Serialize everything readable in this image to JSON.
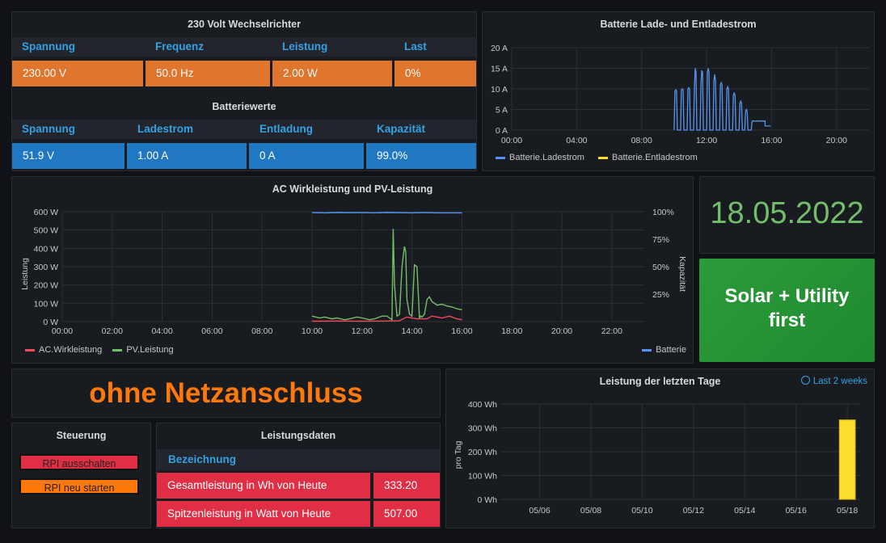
{
  "inverter": {
    "title": "230 Volt Wechselrichter",
    "headers": [
      "Spannung",
      "Frequenz",
      "Leistung",
      "Last"
    ],
    "values": [
      "230.00 V",
      "50.0 Hz",
      "2.00 W",
      "0%"
    ],
    "colors": {
      "cell": "#e0752d"
    }
  },
  "battery_values": {
    "title": "Batteriewerte",
    "headers": [
      "Spannung",
      "Ladestrom",
      "Entladung",
      "Kapazität"
    ],
    "values": [
      "51.9 V",
      "1.00 A",
      "0 A",
      "99.0%"
    ],
    "colors": {
      "cell": "#1f78c1"
    }
  },
  "battery_current_chart": {
    "title": "Batterie Lade- und Entladestrom",
    "legend": [
      "Batterie.Ladestrom",
      "Batterie.Entladestrom"
    ],
    "colors": [
      "#5794f2",
      "#fade2a"
    ]
  },
  "ac_chart": {
    "title": "AC Wirkleistung und PV-Leistung",
    "ylabel_left": "Leistung",
    "ylabel_right": "Kapazität",
    "legend_left": [
      "AC.Wirkleistung",
      "PV.Leistung"
    ],
    "legend_right": "Batterie",
    "colors": [
      "#f2495c",
      "#73bf69",
      "#5794f2"
    ]
  },
  "date_panel": {
    "value": "18.05.2022",
    "color": "#73bf69"
  },
  "mode_panel": {
    "value": "Solar + Utility first",
    "color": "#229432"
  },
  "grid_status": {
    "value": "ohne Netzanschluss",
    "color": "#ff780a"
  },
  "control": {
    "title": "Steuerung",
    "shutdown_label": "RPI ausschalten",
    "restart_label": "RPI neu starten"
  },
  "power_data": {
    "title": "Leistungsdaten",
    "column_header": "Bezeichnung",
    "rows": [
      {
        "label": "Gesamtleistung in Wh von Heute",
        "value": "333.20"
      },
      {
        "label": "Spitzenleistung in Watt von Heute",
        "value": "507.00"
      }
    ]
  },
  "daily_chart": {
    "title": "Leistung der letzten Tage",
    "time_range": "Last 2 weeks",
    "ylabel": "pro Tag",
    "color": "#fade2a"
  },
  "chart_data": [
    {
      "type": "line",
      "title": "Batterie Lade- und Entladestrom",
      "x_ticks": [
        "00:00",
        "04:00",
        "08:00",
        "12:00",
        "16:00",
        "20:00"
      ],
      "y_ticks": [
        "0 A",
        "5 A",
        "10 A",
        "15 A",
        "20 A"
      ],
      "ylim": [
        0,
        20
      ],
      "xlim_hours": [
        0,
        22
      ],
      "series": [
        {
          "name": "Batterie.Ladestrom",
          "color": "#5794f2",
          "x_hours": [
            10.0,
            10.05,
            10.1,
            10.15,
            10.2,
            10.4,
            10.45,
            10.5,
            10.55,
            10.6,
            10.8,
            10.85,
            10.9,
            10.95,
            11.0,
            11.2,
            11.25,
            11.3,
            11.35,
            11.4,
            11.6,
            11.65,
            11.7,
            11.75,
            11.8,
            12.0,
            12.05,
            12.1,
            12.15,
            12.2,
            12.4,
            12.45,
            12.5,
            12.55,
            12.6,
            12.8,
            12.85,
            12.9,
            12.95,
            13.0,
            13.2,
            13.25,
            13.3,
            13.35,
            13.4,
            13.6,
            13.65,
            13.7,
            13.75,
            13.8,
            14.0,
            14.05,
            14.1,
            14.15,
            14.2,
            14.35,
            14.4,
            14.45,
            14.5,
            14.55,
            14.75,
            14.8,
            14.85,
            14.9,
            14.95,
            15.0,
            15.05,
            15.1,
            15.5,
            15.6,
            15.6,
            15.95
          ],
          "values": [
            0,
            9.5,
            9.8,
            9.5,
            0,
            0,
            9.8,
            10,
            9.8,
            0,
            0,
            10,
            10.3,
            10,
            0,
            0,
            10,
            15,
            14,
            0,
            0,
            11,
            14.5,
            14,
            0,
            0,
            14,
            15,
            14,
            0,
            0,
            12,
            13.5,
            12,
            0,
            0,
            11,
            11.5,
            11,
            0,
            0,
            10,
            10.5,
            10,
            0,
            0,
            8.5,
            9,
            8.5,
            0,
            0,
            6.5,
            7,
            6.5,
            0,
            0,
            4.5,
            5,
            4.5,
            0,
            0,
            2,
            2.3,
            2.2,
            2.2,
            2.2,
            2.2,
            2.2,
            2.2,
            2.2,
            1,
            1
          ]
        },
        {
          "name": "Batterie.Entladestrom",
          "color": "#fade2a",
          "x_hours": [],
          "values": []
        }
      ]
    },
    {
      "type": "line",
      "title": "AC Wirkleistung und PV-Leistung",
      "x_ticks": [
        "00:00",
        "02:00",
        "04:00",
        "06:00",
        "08:00",
        "10:00",
        "12:00",
        "14:00",
        "16:00",
        "18:00",
        "20:00",
        "22:00"
      ],
      "y_ticks_left": [
        "0 W",
        "100 W",
        "200 W",
        "300 W",
        "400 W",
        "500 W",
        "600 W"
      ],
      "y_ticks_right": [
        "25%",
        "50%",
        "75%",
        "100%"
      ],
      "ylim_left": [
        0,
        600
      ],
      "ylim_right": [
        0,
        100
      ],
      "xlim_hours": [
        0,
        23.3
      ],
      "series": [
        {
          "name": "PV.Leistung",
          "axis": "left",
          "color": "#73bf69",
          "x_hours": [
            10.0,
            10.3,
            10.5,
            10.8,
            11.0,
            11.3,
            11.5,
            11.8,
            12.0,
            12.3,
            12.5,
            12.8,
            13.0,
            13.1,
            13.2,
            13.25,
            13.3,
            13.4,
            13.5,
            13.6,
            13.7,
            13.75,
            13.8,
            13.9,
            14.0,
            14.1,
            14.2,
            14.3,
            14.35,
            14.4,
            14.5,
            14.6,
            14.7,
            14.8,
            15.0,
            15.2,
            15.4,
            15.6,
            15.8,
            16.0
          ],
          "values": [
            30,
            20,
            25,
            15,
            20,
            10,
            15,
            25,
            20,
            10,
            15,
            30,
            30,
            20,
            10,
            507,
            200,
            30,
            40,
            300,
            410,
            380,
            120,
            40,
            30,
            310,
            300,
            20,
            30,
            25,
            40,
            120,
            135,
            110,
            90,
            95,
            85,
            80,
            70,
            65
          ]
        },
        {
          "name": "AC.Wirkleistung",
          "axis": "left",
          "color": "#f2495c",
          "x_hours": [
            10.0,
            11.0,
            12.0,
            13.0,
            13.5,
            13.8,
            14.0,
            14.2,
            14.6,
            14.8,
            15.0,
            15.2,
            15.5,
            15.8,
            16.0
          ],
          "values": [
            2,
            3,
            2,
            3,
            5,
            25,
            20,
            15,
            15,
            30,
            25,
            20,
            30,
            15,
            10
          ]
        },
        {
          "name": "Batterie",
          "axis": "right",
          "color": "#5794f2",
          "x_hours": [
            10.0,
            10.5,
            11.0,
            11.5,
            12.0,
            12.5,
            13.0,
            13.5,
            14.0,
            14.5,
            15.0,
            15.5,
            16.0
          ],
          "values": [
            99.2,
            99.0,
            99.3,
            99.1,
            99.2,
            99.0,
            99.3,
            99.1,
            99.0,
            99.2,
            99.0,
            99.0,
            99.0
          ]
        }
      ]
    },
    {
      "type": "bar",
      "title": "Leistung der letzten Tage",
      "ylabel": "pro Tag",
      "x_ticks": [
        "05/06",
        "05/08",
        "05/10",
        "05/12",
        "05/14",
        "05/16",
        "05/18"
      ],
      "y_ticks": [
        "0 Wh",
        "100 Wh",
        "200 Wh",
        "300 Wh",
        "400 Wh"
      ],
      "ylim": [
        0,
        400
      ],
      "categories": [
        "05/18"
      ],
      "values": [
        333.2
      ],
      "x_day_range": [
        4.5,
        18.5
      ],
      "bar_day": 18
    }
  ]
}
